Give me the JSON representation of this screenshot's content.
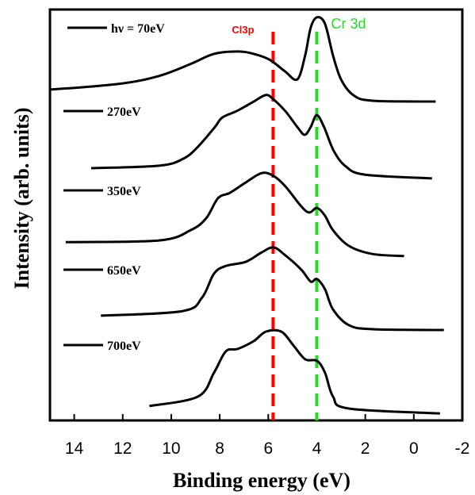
{
  "chart_data": {
    "type": "line",
    "x_label": "Binding energy (eV)",
    "y_label": "Intensity (arb. units)",
    "xlim": [
      15,
      -2
    ],
    "xticks": [
      14,
      12,
      10,
      8,
      6,
      4,
      2,
      0,
      -2
    ],
    "ylim": [
      0,
      100
    ],
    "annotations": [
      {
        "text": "Cl3p",
        "x": 5.8,
        "color": "#ff0000"
      },
      {
        "text": "Cr 3d",
        "x": 4.0,
        "color": "#22dd22"
      }
    ],
    "series": [
      {
        "name": "hν = 70eV",
        "color": "#000000",
        "x": [
          15,
          12.16,
          10.52,
          9.22,
          8.24,
          7.26,
          6.6,
          5.95,
          5.3,
          4.8,
          4.48,
          4.25,
          3.99,
          3.66,
          3.33,
          3.0,
          2.5,
          1.7,
          -0.9
        ],
        "values": [
          80.5,
          81.9,
          83.8,
          86.7,
          89.2,
          89.8,
          89.2,
          87.8,
          84.9,
          83.0,
          88.8,
          95.6,
          98.1,
          96.5,
          88.8,
          83.0,
          79.2,
          77.8,
          77.6
        ]
      },
      {
        "name": "270eV",
        "color": "#000000",
        "x": [
          13.3,
          10.5,
          9.5,
          8.9,
          8.2,
          7.9,
          7.3,
          6.6,
          6.1,
          5.8,
          5.3,
          4.8,
          4.5,
          4.25,
          4.0,
          3.7,
          3.3,
          2.8,
          2.0,
          -0.75
        ],
        "values": [
          61.4,
          62.0,
          63.7,
          66.6,
          71.4,
          73.7,
          75.3,
          77.6,
          79.2,
          78.2,
          75.3,
          71.4,
          69.5,
          71.4,
          74.3,
          71.4,
          65.6,
          61.8,
          59.8,
          58.9
        ]
      },
      {
        "name": "350eV",
        "color": "#000000",
        "x": [
          14.35,
          10.5,
          9.2,
          8.56,
          8.07,
          7.58,
          6.93,
          6.27,
          5.78,
          5.3,
          4.64,
          4.31,
          3.99,
          3.66,
          3.33,
          2.68,
          1.7,
          0.4
        ],
        "values": [
          43.4,
          43.8,
          46.3,
          49.2,
          54.1,
          55.4,
          57.9,
          60.2,
          59.5,
          57.0,
          52.1,
          50.6,
          51.7,
          49.8,
          46.3,
          42.5,
          40.5,
          40.0
        ]
      },
      {
        "name": "650eV",
        "color": "#000000",
        "x": [
          12.9,
          9.54,
          8.73,
          8.24,
          7.75,
          6.93,
          6.27,
          5.78,
          5.3,
          4.64,
          4.25,
          3.99,
          3.66,
          3.33,
          2.68,
          1.7,
          -1.24
        ],
        "values": [
          25.5,
          26.6,
          29.9,
          35.7,
          37.6,
          38.6,
          40.9,
          42.1,
          40.2,
          36.7,
          33.8,
          34.4,
          31.9,
          27.0,
          23.2,
          22.2,
          22.0
        ]
      },
      {
        "name": "700eV",
        "color": "#000000",
        "x": [
          10.9,
          8.9,
          8.24,
          7.75,
          7.26,
          6.6,
          6.1,
          5.46,
          4.97,
          4.48,
          3.99,
          3.66,
          3.33,
          2.68,
          -1.08
        ],
        "values": [
          3.5,
          5.8,
          11.6,
          16.8,
          17.4,
          19.3,
          21.6,
          21.6,
          18.3,
          14.9,
          14.5,
          11.6,
          5.8,
          2.9,
          1.7
        ]
      }
    ]
  }
}
